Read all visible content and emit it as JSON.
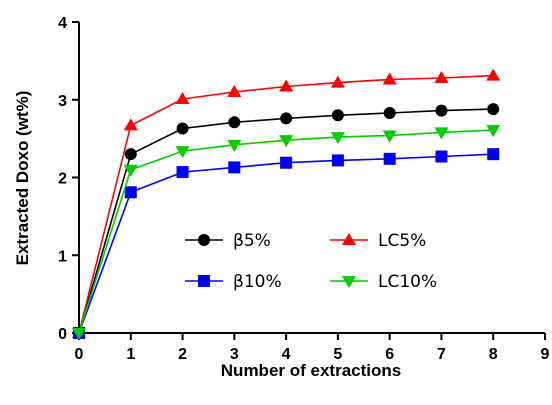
{
  "chart_data": {
    "type": "line",
    "xlabel": "Number of extractions",
    "ylabel": "Extracted Doxo (wt%)",
    "xlim": [
      0,
      9
    ],
    "ylim": [
      0,
      4
    ],
    "x_ticks": [
      "0",
      "1",
      "2",
      "3",
      "4",
      "5",
      "6",
      "7",
      "8",
      "9"
    ],
    "y_ticks": [
      "0",
      "1",
      "2",
      "3",
      "4"
    ],
    "grid": false,
    "legend_position": "center",
    "x": [
      0,
      1,
      2,
      3,
      4,
      5,
      6,
      7,
      8
    ],
    "series": [
      {
        "name": "β5%",
        "color": "#000000",
        "marker": "circle",
        "values": [
          0,
          2.3,
          2.63,
          2.71,
          2.76,
          2.8,
          2.83,
          2.86,
          2.88
        ]
      },
      {
        "name": "LC5%",
        "color": "#ff0000",
        "marker": "triangle-up",
        "values": [
          0,
          2.67,
          3.01,
          3.1,
          3.17,
          3.22,
          3.26,
          3.28,
          3.31
        ]
      },
      {
        "name": "β10%",
        "color": "#0000ff",
        "marker": "square",
        "values": [
          0,
          1.81,
          2.07,
          2.13,
          2.19,
          2.22,
          2.24,
          2.27,
          2.3
        ]
      },
      {
        "name": "LC10%",
        "color": "#00cc00",
        "marker": "triangle-down",
        "values": [
          0,
          2.1,
          2.34,
          2.42,
          2.48,
          2.52,
          2.54,
          2.58,
          2.61
        ]
      }
    ]
  }
}
